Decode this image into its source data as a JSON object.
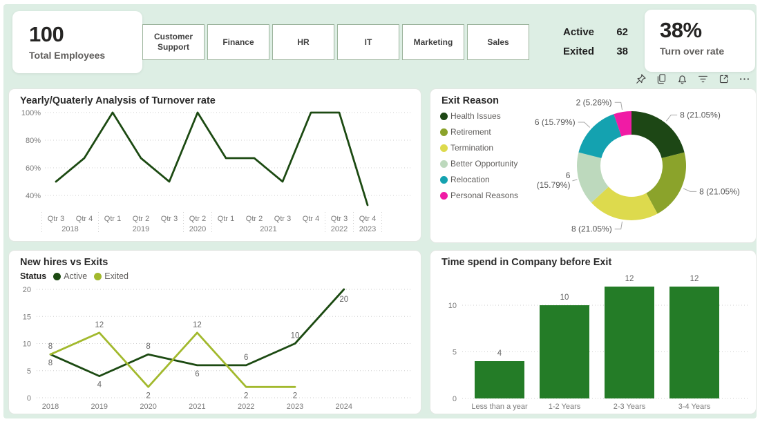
{
  "palette": {
    "canvas_bg": "#ddeee4",
    "panel_bg": "#ffffff",
    "dark_green": "#1c4a12",
    "olive_green": "#a2b92d",
    "bar_green": "#247c27",
    "axis_text": "#7a7a7a",
    "data_label_text": "#666666"
  },
  "cards": {
    "total_employees": {
      "value": "100",
      "label": "Total Employees"
    },
    "turnover_rate": {
      "value": "38%",
      "label": "Turn over rate"
    }
  },
  "departments": [
    "Customer Support",
    "Finance",
    "HR",
    "IT",
    "Marketing",
    "Sales"
  ],
  "status_summary": [
    {
      "label": "Active",
      "value": "62"
    },
    {
      "label": "Exited",
      "value": "38"
    }
  ],
  "toolbar": {
    "icons": [
      "pin",
      "copy",
      "alert",
      "filter",
      "focus-mode",
      "more-options"
    ]
  },
  "chart_data": [
    {
      "id": "turnover",
      "type": "line",
      "title": "Yearly/Quaterly Analysis of Turnover rate",
      "x_groups": [
        {
          "year": "2018",
          "quarters": [
            "Qtr 3",
            "Qtr 4"
          ]
        },
        {
          "year": "2019",
          "quarters": [
            "Qtr 1",
            "Qtr 2",
            "Qtr 3"
          ]
        },
        {
          "year": "2020",
          "quarters": [
            "Qtr 2"
          ]
        },
        {
          "year": "2021",
          "quarters": [
            "Qtr 1",
            "Qtr 2",
            "Qtr 3",
            "Qtr 4"
          ]
        },
        {
          "year": "2022",
          "quarters": [
            "Qtr 3"
          ]
        },
        {
          "year": "2023",
          "quarters": [
            "Qtr 4"
          ]
        }
      ],
      "values": [
        50,
        67,
        100,
        67,
        50,
        100,
        67,
        67,
        50,
        100,
        100,
        33
      ],
      "ylim": [
        30,
        100
      ],
      "yticks": [
        40,
        60,
        80,
        100
      ],
      "ytick_suffix": "%",
      "line_color": "#1c4a12",
      "grid": "dotted"
    },
    {
      "id": "exit_reason",
      "type": "pie",
      "title": "Exit Reason",
      "legend_position": "left",
      "slices": [
        {
          "label": "Health Issues",
          "value": 8,
          "pct": "21.05",
          "color": "#1d4715"
        },
        {
          "label": "Retirement",
          "value": 8,
          "pct": "21.05",
          "color": "#8ba32b"
        },
        {
          "label": "Termination",
          "value": 8,
          "pct": "21.05",
          "color": "#ddda4d"
        },
        {
          "label": "Better Opportunity",
          "value": 6,
          "pct": "15.79",
          "color": "#bdd9bd"
        },
        {
          "label": "Relocation",
          "value": 6,
          "pct": "15.79",
          "color": "#14a2b0"
        },
        {
          "label": "Personal Reasons",
          "value": 2,
          "pct": "5.26",
          "color": "#f01ba5"
        }
      ]
    },
    {
      "id": "new_hires_vs_exits",
      "type": "line",
      "title": "New hires vs Exits",
      "legend_title": "Status",
      "categories": [
        "2018",
        "2019",
        "2020",
        "2021",
        "2022",
        "2023",
        "2024"
      ],
      "series": [
        {
          "name": "Active",
          "color": "#1c4a12",
          "values": [
            8,
            4,
            8,
            6,
            6,
            10,
            20
          ]
        },
        {
          "name": "Exited",
          "color": "#a2b92d",
          "values": [
            8,
            12,
            2,
            12,
            2,
            2,
            null
          ]
        }
      ],
      "ylim": [
        0,
        20
      ],
      "yticks": [
        0,
        5,
        10,
        15,
        20
      ],
      "data_labels": true,
      "grid": "dotted"
    },
    {
      "id": "time_before_exit",
      "type": "bar",
      "title": "Time spend in Company before Exit",
      "categories": [
        "Less than a year",
        "1-2 Years",
        "2-3 Years",
        "3-4 Years"
      ],
      "values": [
        4,
        10,
        12,
        12
      ],
      "ylim": [
        0,
        12.5
      ],
      "yticks": [
        0,
        5,
        10
      ],
      "bar_color": "#247c27",
      "data_labels": true,
      "grid": "dotted"
    }
  ]
}
